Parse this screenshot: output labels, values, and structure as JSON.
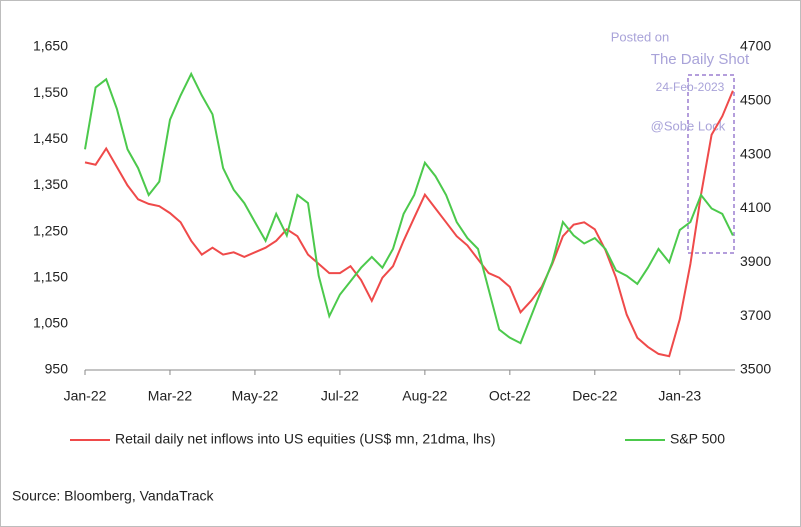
{
  "chart_data": {
    "type": "line",
    "x": [
      0,
      0.125,
      0.25,
      0.375,
      0.5,
      0.625,
      0.75,
      0.875,
      1,
      1.125,
      1.25,
      1.375,
      1.5,
      1.625,
      1.75,
      1.875,
      2,
      2.125,
      2.25,
      2.375,
      2.5,
      2.625,
      2.75,
      2.875,
      3,
      3.125,
      3.25,
      3.375,
      3.5,
      3.625,
      3.75,
      3.875,
      4,
      4.125,
      4.25,
      4.375,
      4.5,
      4.625,
      4.75,
      4.875,
      5,
      5.125,
      5.25,
      5.375,
      5.5,
      5.625,
      5.75,
      5.875,
      6,
      6.125,
      6.25,
      6.375,
      6.5,
      6.625,
      6.75,
      6.875,
      7,
      7.125,
      7.25,
      7.375,
      7.5,
      7.625
    ],
    "xlim": [
      0,
      7.65
    ],
    "xticks": [
      {
        "value": 0,
        "label": "Jan-22"
      },
      {
        "value": 1,
        "label": "Mar-22"
      },
      {
        "value": 2,
        "label": "May-22"
      },
      {
        "value": 3,
        "label": "Jul-22"
      },
      {
        "value": 4,
        "label": "Aug-22"
      },
      {
        "value": 5,
        "label": "Oct-22"
      },
      {
        "value": 6,
        "label": "Dec-22"
      },
      {
        "value": 7,
        "label": "Jan-23"
      }
    ],
    "ylim": [
      950,
      1650
    ],
    "yticks": [
      950,
      {
        "value": 1050,
        "label": "1,050"
      },
      {
        "value": 1150,
        "label": "1,150"
      },
      {
        "value": 1250,
        "label": "1,250"
      },
      {
        "value": 1350,
        "label": "1,350"
      },
      {
        "value": 1450,
        "label": "1,450"
      },
      {
        "value": 1550,
        "label": "1,550"
      },
      {
        "value": 1650,
        "label": "1,650"
      }
    ],
    "y2lim": [
      3500,
      4700
    ],
    "y2ticks": [
      3500,
      3700,
      3900,
      4100,
      4300,
      4500,
      4700
    ],
    "series": [
      {
        "name": "Retail daily net inflows into US equities (US$ mn, 21dma, lhs)",
        "color": "#ef4a4a",
        "values": [
          1400,
          1395,
          1430,
          1390,
          1350,
          1320,
          1310,
          1305,
          1290,
          1270,
          1230,
          1200,
          1215,
          1200,
          1205,
          1195,
          1205,
          1215,
          1230,
          1255,
          1240,
          1200,
          1180,
          1160,
          1160,
          1175,
          1145,
          1100,
          1150,
          1175,
          1230,
          1280,
          1330,
          1300,
          1270,
          1240,
          1220,
          1190,
          1160,
          1150,
          1130,
          1075,
          1100,
          1130,
          1180,
          1240,
          1265,
          1270,
          1255,
          1210,
          1150,
          1070,
          1020,
          1000,
          985,
          980,
          1060,
          1180,
          1330,
          1460,
          1500,
          1555
        ]
      },
      {
        "name": "S&P 500",
        "color": "#4cc94c",
        "axis": "y2",
        "values": [
          4320,
          4550,
          4580,
          4470,
          4320,
          4250,
          4150,
          4200,
          4430,
          4520,
          4600,
          4520,
          4450,
          4250,
          4170,
          4120,
          4050,
          3980,
          4080,
          4000,
          4150,
          4120,
          3850,
          3700,
          3780,
          3830,
          3880,
          3920,
          3880,
          3950,
          4080,
          4150,
          4270,
          4220,
          4150,
          4050,
          3990,
          3950,
          3800,
          3650,
          3620,
          3600,
          3700,
          3800,
          3900,
          4050,
          4000,
          3970,
          3990,
          3950,
          3870,
          3850,
          3820,
          3880,
          3950,
          3900,
          4020,
          4050,
          4150,
          4100,
          4080,
          4000
        ]
      }
    ],
    "legend": "bottom",
    "annotations": [
      "Posted on",
      "The Daily Shot",
      "24-Feb-2023",
      "@Sobe Lock"
    ],
    "source": "Source: Bloomberg, VandaTrack"
  }
}
